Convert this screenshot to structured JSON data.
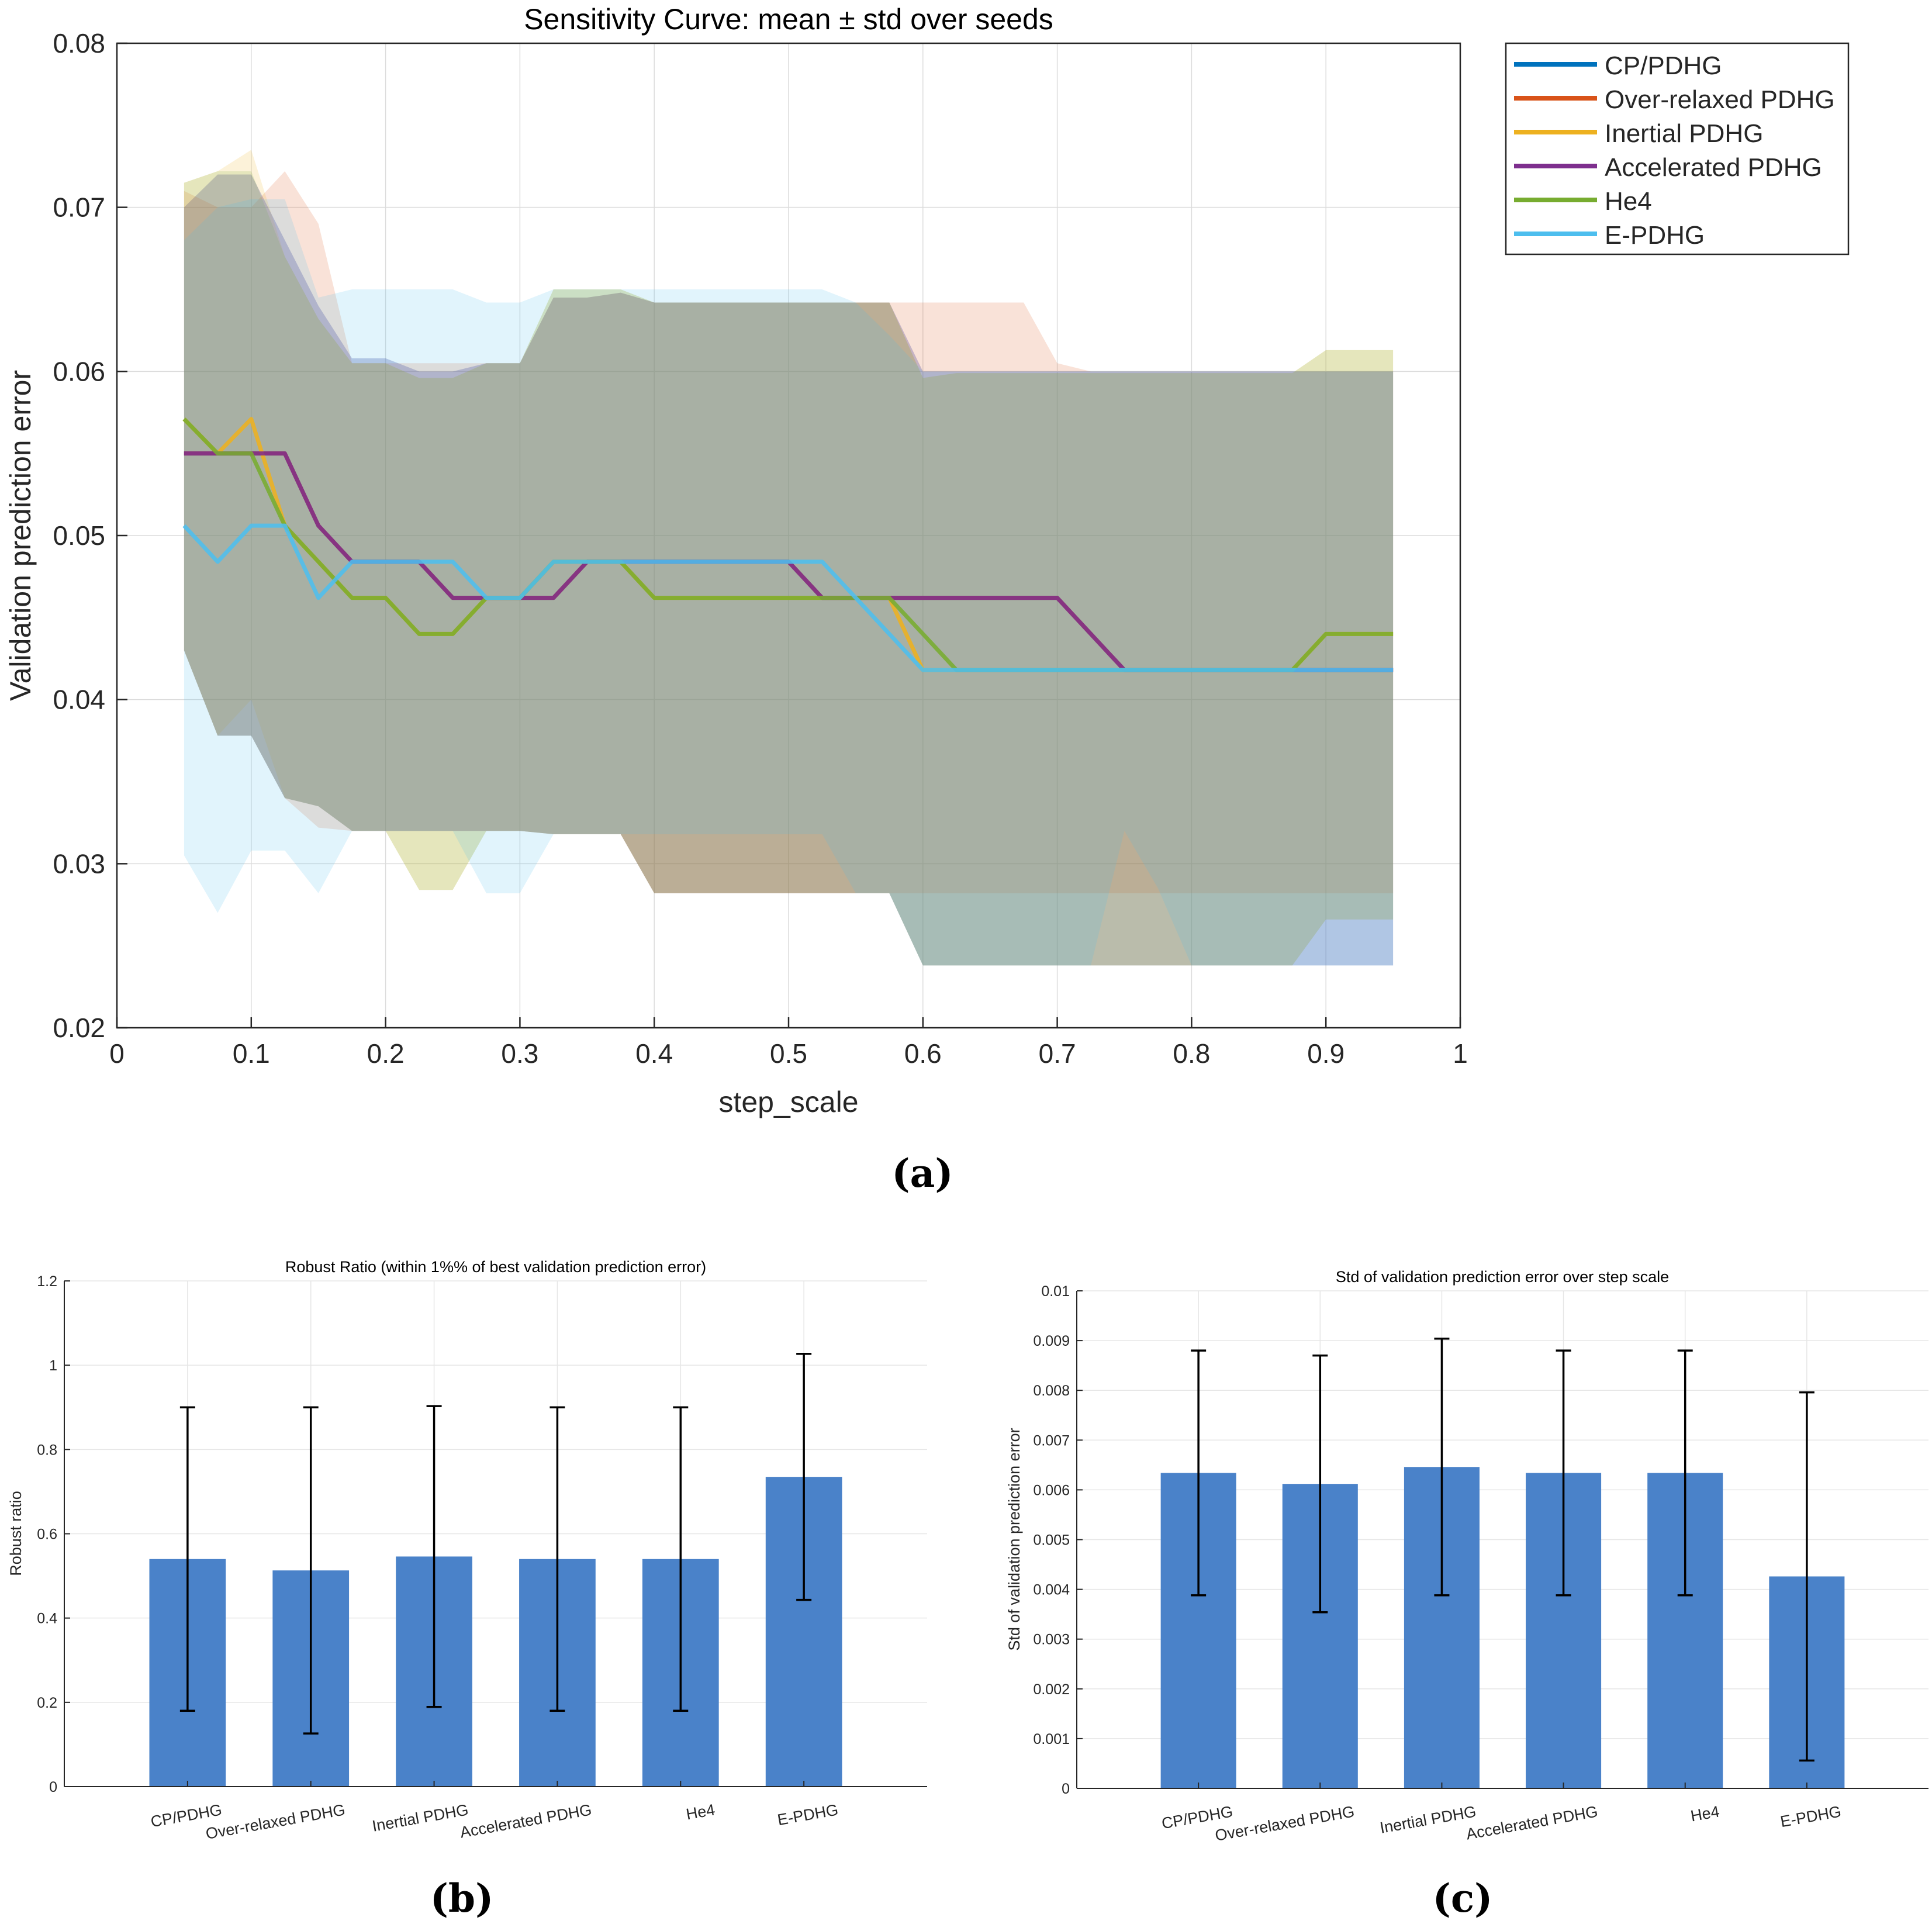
{
  "panel_labels": {
    "a": "(a)",
    "b": "(b)",
    "c": "(c)"
  },
  "colors": {
    "CP/PDHG": "#0072BD",
    "Over-relaxed PDHG": "#D95319",
    "Inertial PDHG": "#EDB120",
    "Accelerated PDHG": "#7E2F8E",
    "He4": "#77AC30",
    "E-PDHG": "#4DBEEE",
    "bar": "#4A82C9",
    "grid": "#dcdcdc",
    "axis": "#262626"
  },
  "chart_data": [
    {
      "id": "a",
      "type": "line",
      "title": "Sensitivity Curve: mean ± std over seeds",
      "xlabel": "step_scale",
      "ylabel": "Validation prediction error",
      "xlim": [
        0,
        1
      ],
      "ylim": [
        0.02,
        0.08
      ],
      "xticks": [
        0,
        0.1,
        0.2,
        0.3,
        0.4,
        0.5,
        0.6,
        0.7,
        0.8,
        0.9,
        1
      ],
      "xtick_labels": [
        "0",
        "0.1",
        "0.2",
        "0.3",
        "0.4",
        "0.5",
        "0.6",
        "0.7",
        "0.8",
        "0.9",
        "1"
      ],
      "yticks": [
        0.02,
        0.03,
        0.04,
        0.05,
        0.06,
        0.07,
        0.08
      ],
      "ytick_labels": [
        "0.02",
        "0.03",
        "0.04",
        "0.05",
        "0.06",
        "0.07",
        "0.08"
      ],
      "grid": true,
      "legend": "outside-top-right",
      "x": [
        0.05,
        0.075,
        0.1,
        0.125,
        0.15,
        0.175,
        0.2,
        0.225,
        0.25,
        0.275,
        0.3,
        0.325,
        0.35,
        0.375,
        0.4,
        0.425,
        0.45,
        0.475,
        0.5,
        0.525,
        0.55,
        0.575,
        0.6,
        0.625,
        0.65,
        0.675,
        0.7,
        0.725,
        0.75,
        0.775,
        0.8,
        0.825,
        0.85,
        0.875,
        0.9,
        0.925,
        0.95
      ],
      "series": [
        {
          "name": "CP/PDHG",
          "mean": [
            0.055,
            0.055,
            0.055,
            0.055,
            0.0506,
            0.0484,
            0.0484,
            0.0484,
            0.0462,
            0.0462,
            0.0462,
            0.0462,
            0.0484,
            0.0484,
            0.0484,
            0.0484,
            0.0484,
            0.0484,
            0.0484,
            0.0462,
            0.0462,
            0.0462,
            0.0462,
            0.0462,
            0.0462,
            0.0462,
            0.0462,
            0.044,
            0.0418,
            0.0418,
            0.0418,
            0.0418,
            0.0418,
            0.0418,
            0.0418,
            0.0418,
            0.0418
          ],
          "upper": [
            0.07,
            0.072,
            0.072,
            0.068,
            0.064,
            0.0608,
            0.0608,
            0.06,
            0.06,
            0.0605,
            0.0605,
            0.0645,
            0.0645,
            0.0648,
            0.0642,
            0.0642,
            0.0642,
            0.0642,
            0.0642,
            0.0642,
            0.0642,
            0.0642,
            0.06,
            0.06,
            0.06,
            0.06,
            0.06,
            0.06,
            0.06,
            0.06,
            0.06,
            0.06,
            0.06,
            0.06,
            0.06,
            0.06,
            0.06
          ],
          "lower": [
            0.043,
            0.0378,
            0.0378,
            0.034,
            0.0335,
            0.032,
            0.032,
            0.032,
            0.032,
            0.032,
            0.032,
            0.0318,
            0.0318,
            0.0318,
            0.0282,
            0.0282,
            0.0282,
            0.0282,
            0.0282,
            0.0282,
            0.0282,
            0.0282,
            0.0238,
            0.0238,
            0.0238,
            0.0238,
            0.0238,
            0.0238,
            0.0238,
            0.0238,
            0.0238,
            0.0238,
            0.0238,
            0.0238,
            0.0238,
            0.0238,
            0.0238
          ]
        },
        {
          "name": "Over-relaxed PDHG",
          "mean": [
            0.055,
            0.055,
            0.055,
            0.055,
            0.0506,
            0.0484,
            0.0484,
            0.0484,
            0.0462,
            0.0462,
            0.0462,
            0.0462,
            0.0484,
            0.0484,
            0.0484,
            0.0484,
            0.0484,
            0.0484,
            0.0484,
            0.0462,
            0.0462,
            0.0462,
            0.0462,
            0.0462,
            0.0462,
            0.0462,
            0.0462,
            0.044,
            0.0418,
            0.0418,
            0.0418,
            0.0418,
            0.0418,
            0.0418,
            0.0418,
            0.0418,
            0.0418
          ],
          "upper": [
            0.071,
            0.07,
            0.07,
            0.0722,
            0.069,
            0.0605,
            0.0605,
            0.0605,
            0.0605,
            0.0605,
            0.0605,
            0.0645,
            0.0645,
            0.0648,
            0.0642,
            0.0642,
            0.0642,
            0.0642,
            0.0642,
            0.0642,
            0.0642,
            0.0642,
            0.0642,
            0.0642,
            0.0642,
            0.0642,
            0.0605,
            0.06,
            0.06,
            0.06,
            0.06,
            0.06,
            0.06,
            0.06,
            0.06,
            0.06,
            0.06
          ],
          "lower": [
            0.043,
            0.0378,
            0.0378,
            0.034,
            0.0322,
            0.032,
            0.032,
            0.032,
            0.032,
            0.032,
            0.032,
            0.0318,
            0.0318,
            0.0318,
            0.0282,
            0.0282,
            0.0282,
            0.0282,
            0.0282,
            0.0282,
            0.0282,
            0.0282,
            0.0282,
            0.0282,
            0.0282,
            0.0282,
            0.0282,
            0.0282,
            0.0282,
            0.0282,
            0.0282,
            0.0282,
            0.0282,
            0.0282,
            0.0282,
            0.0282,
            0.0282
          ]
        },
        {
          "name": "Inertial PDHG",
          "mean": [
            0.0571,
            0.055,
            0.0571,
            0.0506,
            0.0484,
            0.0462,
            0.0462,
            0.044,
            0.044,
            0.0462,
            0.0462,
            0.0484,
            0.0484,
            0.0484,
            0.0462,
            0.0462,
            0.0462,
            0.0462,
            0.0462,
            0.0462,
            0.0462,
            0.0462,
            0.0418,
            0.0418,
            0.0418,
            0.0418,
            0.0418,
            0.0418,
            0.0418,
            0.0418,
            0.0418,
            0.0418,
            0.0418,
            0.0418,
            0.044,
            0.044,
            0.044
          ],
          "upper": [
            0.0715,
            0.0722,
            0.0735,
            0.067,
            0.0632,
            0.0605,
            0.0605,
            0.0596,
            0.0596,
            0.0605,
            0.0605,
            0.065,
            0.065,
            0.065,
            0.0642,
            0.0642,
            0.0642,
            0.0642,
            0.0642,
            0.0642,
            0.0642,
            0.0642,
            0.0596,
            0.0599,
            0.0599,
            0.0599,
            0.0599,
            0.0599,
            0.0599,
            0.0599,
            0.0599,
            0.0599,
            0.0599,
            0.0599,
            0.0613,
            0.0613,
            0.0613
          ],
          "lower": [
            0.043,
            0.0378,
            0.04,
            0.034,
            0.0335,
            0.032,
            0.032,
            0.0284,
            0.0284,
            0.032,
            0.032,
            0.0318,
            0.0318,
            0.0318,
            0.0282,
            0.0282,
            0.0282,
            0.0282,
            0.0282,
            0.0282,
            0.0282,
            0.0282,
            0.0238,
            0.0238,
            0.0238,
            0.0238,
            0.0238,
            0.0238,
            0.0238,
            0.0238,
            0.0238,
            0.0238,
            0.0238,
            0.0238,
            0.0266,
            0.0266,
            0.0266
          ]
        },
        {
          "name": "Accelerated PDHG",
          "mean": [
            0.055,
            0.055,
            0.055,
            0.055,
            0.0506,
            0.0484,
            0.0484,
            0.0484,
            0.0462,
            0.0462,
            0.0462,
            0.0462,
            0.0484,
            0.0484,
            0.0484,
            0.0484,
            0.0484,
            0.0484,
            0.0484,
            0.0462,
            0.0462,
            0.0462,
            0.0462,
            0.0462,
            0.0462,
            0.0462,
            0.0462,
            0.044,
            0.0418,
            0.0418,
            0.0418,
            0.0418,
            0.0418,
            0.0418,
            0.0418,
            0.0418,
            0.0418
          ],
          "upper": [
            0.07,
            0.072,
            0.072,
            0.068,
            0.064,
            0.0608,
            0.0608,
            0.06,
            0.06,
            0.0605,
            0.0605,
            0.0645,
            0.0645,
            0.0648,
            0.0642,
            0.0642,
            0.0642,
            0.0642,
            0.0642,
            0.0642,
            0.0642,
            0.0642,
            0.06,
            0.06,
            0.06,
            0.06,
            0.06,
            0.06,
            0.06,
            0.06,
            0.06,
            0.06,
            0.06,
            0.06,
            0.06,
            0.06,
            0.06
          ],
          "lower": [
            0.043,
            0.0378,
            0.0378,
            0.034,
            0.0335,
            0.032,
            0.032,
            0.032,
            0.032,
            0.032,
            0.032,
            0.0318,
            0.0318,
            0.0318,
            0.0282,
            0.0282,
            0.0282,
            0.0282,
            0.0282,
            0.0282,
            0.0282,
            0.0282,
            0.0238,
            0.0238,
            0.0238,
            0.0238,
            0.0238,
            0.0238,
            0.0238,
            0.0238,
            0.0238,
            0.0238,
            0.0238,
            0.0238,
            0.0238,
            0.0238,
            0.0238
          ]
        },
        {
          "name": "He4",
          "mean": [
            0.0571,
            0.055,
            0.055,
            0.0506,
            0.0484,
            0.0462,
            0.0462,
            0.044,
            0.044,
            0.0462,
            0.0462,
            0.0484,
            0.0484,
            0.0484,
            0.0462,
            0.0462,
            0.0462,
            0.0462,
            0.0462,
            0.0462,
            0.0462,
            0.0462,
            0.044,
            0.0418,
            0.0418,
            0.0418,
            0.0418,
            0.0418,
            0.0418,
            0.0418,
            0.0418,
            0.0418,
            0.0418,
            0.0418,
            0.044,
            0.044,
            0.044
          ],
          "upper": [
            0.0715,
            0.0722,
            0.0722,
            0.067,
            0.0632,
            0.0605,
            0.0605,
            0.0596,
            0.0596,
            0.0605,
            0.0605,
            0.065,
            0.065,
            0.065,
            0.0642,
            0.0642,
            0.0642,
            0.0642,
            0.0642,
            0.0642,
            0.0642,
            0.0642,
            0.0596,
            0.0599,
            0.0599,
            0.0599,
            0.0599,
            0.0599,
            0.0599,
            0.0599,
            0.0599,
            0.0599,
            0.0599,
            0.0599,
            0.0613,
            0.0613,
            0.0613
          ],
          "lower": [
            0.043,
            0.0378,
            0.0378,
            0.034,
            0.0335,
            0.032,
            0.032,
            0.0284,
            0.0284,
            0.032,
            0.032,
            0.0318,
            0.0318,
            0.0318,
            0.0282,
            0.0282,
            0.0282,
            0.0282,
            0.0282,
            0.0282,
            0.0282,
            0.0282,
            0.0238,
            0.0238,
            0.0238,
            0.0238,
            0.0238,
            0.0238,
            0.0238,
            0.0238,
            0.0238,
            0.0238,
            0.0238,
            0.0238,
            0.0266,
            0.0266,
            0.0266
          ]
        },
        {
          "name": "E-PDHG",
          "mean": [
            0.0506,
            0.0484,
            0.0506,
            0.0506,
            0.0462,
            0.0484,
            0.0484,
            0.0484,
            0.0484,
            0.0462,
            0.0462,
            0.0484,
            0.0484,
            0.0484,
            0.0484,
            0.0484,
            0.0484,
            0.0484,
            0.0484,
            0.0484,
            0.0462,
            0.044,
            0.0418,
            0.0418,
            0.0418,
            0.0418,
            0.0418,
            0.0418,
            0.0418,
            0.0418,
            0.0418,
            0.0418,
            0.0418,
            0.0418,
            0.0418,
            0.0418,
            0.0418
          ],
          "upper": [
            0.068,
            0.07,
            0.0705,
            0.0705,
            0.0645,
            0.065,
            0.065,
            0.065,
            0.065,
            0.0642,
            0.0642,
            0.065,
            0.065,
            0.065,
            0.065,
            0.065,
            0.065,
            0.065,
            0.065,
            0.065,
            0.0642,
            0.0622,
            0.06,
            0.06,
            0.06,
            0.06,
            0.06,
            0.06,
            0.06,
            0.06,
            0.06,
            0.06,
            0.06,
            0.06,
            0.06,
            0.06,
            0.06
          ],
          "lower": [
            0.0305,
            0.027,
            0.0308,
            0.0308,
            0.0282,
            0.032,
            0.032,
            0.032,
            0.032,
            0.0282,
            0.0282,
            0.0318,
            0.0318,
            0.0318,
            0.0318,
            0.0318,
            0.0318,
            0.0318,
            0.0318,
            0.0318,
            0.0282,
            0.0282,
            0.0238,
            0.0238,
            0.0238,
            0.0238,
            0.0238,
            0.0238,
            0.032,
            0.0285,
            0.0238,
            0.0238,
            0.0238,
            0.0238,
            0.0238,
            0.0238,
            0.0238
          ]
        }
      ]
    },
    {
      "id": "b",
      "type": "bar",
      "title": "Robust Ratio (within 1%% of best validation prediction error)",
      "xlabel": "",
      "ylabel": "Robust ratio",
      "categories": [
        "CP/PDHG",
        "Over-relaxed PDHG",
        "Inertial PDHG",
        "Accelerated PDHG",
        "He4",
        "E-PDHG"
      ],
      "values": [
        0.54,
        0.513,
        0.546,
        0.54,
        0.54,
        0.735
      ],
      "errors": [
        0.36,
        0.387,
        0.357,
        0.36,
        0.36,
        0.292
      ],
      "ylim": [
        0,
        1.2
      ],
      "yticks": [
        0,
        0.2,
        0.4,
        0.6,
        0.8,
        1,
        1.2
      ],
      "ytick_labels": [
        "0",
        "0.2",
        "0.4",
        "0.6",
        "0.8",
        "1",
        "1.2"
      ],
      "grid": true
    },
    {
      "id": "c",
      "type": "bar",
      "title": "Std of validation prediction error over step scale",
      "xlabel": "",
      "ylabel": "Std of validation prediction error",
      "categories": [
        "CP/PDHG",
        "Over-relaxed PDHG",
        "Inertial PDHG",
        "Accelerated PDHG",
        "He4",
        "E-PDHG"
      ],
      "values": [
        0.00634,
        0.00612,
        0.00646,
        0.00634,
        0.00634,
        0.00426
      ],
      "errors": [
        0.00246,
        0.00258,
        0.00258,
        0.00246,
        0.00246,
        0.0037
      ],
      "ylim": [
        0,
        0.01
      ],
      "yticks": [
        0,
        0.001,
        0.002,
        0.003,
        0.004,
        0.005,
        0.006,
        0.007,
        0.008,
        0.009,
        0.01
      ],
      "ytick_labels": [
        "0",
        "0.001",
        "0.002",
        "0.003",
        "0.004",
        "0.005",
        "0.006",
        "0.007",
        "0.008",
        "0.009",
        "0.01"
      ],
      "grid": true
    }
  ]
}
